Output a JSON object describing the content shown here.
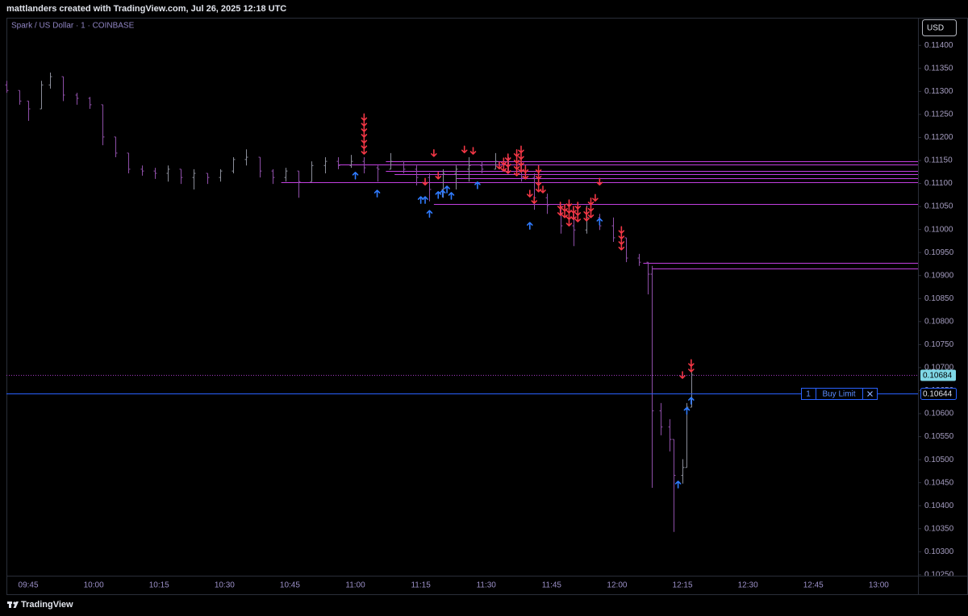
{
  "header": {
    "text": "mattlanders created with TradingView.com, Jul 26, 2025 12:18 UTC"
  },
  "footer": {
    "brand": "TradingView"
  },
  "chart_data": {
    "type": "ohlc",
    "title": "Spark / US Dollar · 1 · COINBASE",
    "currency": "USD",
    "x": [
      "09:40",
      "09:43",
      "09:45",
      "09:48",
      "09:50",
      "09:53",
      "09:56",
      "09:59",
      "10:02",
      "10:05",
      "10:08",
      "10:11",
      "10:14",
      "10:17",
      "10:20",
      "10:23",
      "10:26",
      "10:29",
      "10:32",
      "10:35",
      "10:38",
      "10:41",
      "10:44",
      "10:47",
      "10:50",
      "10:53",
      "10:56",
      "10:59",
      "11:02",
      "11:05",
      "11:08",
      "11:11",
      "11:14",
      "11:17",
      "11:20",
      "11:23",
      "11:26",
      "11:29",
      "11:32",
      "11:35",
      "11:38",
      "11:41",
      "11:44",
      "11:47",
      "11:50",
      "11:53",
      "11:56",
      "11:59",
      "12:02",
      "12:05",
      "12:07",
      "12:08",
      "12:10",
      "12:12",
      "12:13",
      "12:15",
      "12:16",
      "12:17"
    ],
    "open": [
      0.11314,
      0.11302,
      0.11279,
      0.11262,
      0.11314,
      0.11332,
      0.11292,
      0.11285,
      0.11271,
      0.11201,
      0.11166,
      0.11131,
      0.11127,
      0.11122,
      0.11131,
      0.11113,
      0.11122,
      0.11113,
      0.11127,
      0.11152,
      0.11157,
      0.11127,
      0.11113,
      0.11127,
      0.11104,
      0.11139,
      0.11148,
      0.11139,
      0.11148,
      0.11134,
      0.11131,
      0.11148,
      0.11131,
      0.11113,
      0.11087,
      0.11122,
      0.11131,
      0.11139,
      0.11131,
      0.11148,
      0.11139,
      0.11113,
      0.11069,
      0.11052,
      0.11008,
      0.10999,
      0.11026,
      0.11008,
      0.10982,
      0.10938,
      0.10929,
      0.10903,
      0.10606,
      0.10571,
      0.10544,
      0.10466,
      0.10483,
      0.10614
    ],
    "high": [
      0.11323,
      0.11302,
      0.11279,
      0.11323,
      0.11341,
      0.11332,
      0.11297,
      0.11288,
      0.11271,
      0.11201,
      0.11166,
      0.11139,
      0.11134,
      0.11139,
      0.11131,
      0.11131,
      0.11122,
      0.11131,
      0.11157,
      0.11174,
      0.11157,
      0.11131,
      0.11134,
      0.11127,
      0.11148,
      0.11157,
      0.11157,
      0.11162,
      0.11157,
      0.11139,
      0.11166,
      0.11148,
      0.11139,
      0.11122,
      0.11131,
      0.11139,
      0.11157,
      0.11148,
      0.11166,
      0.11157,
      0.11148,
      0.11122,
      0.11078,
      0.11052,
      0.11034,
      0.11052,
      0.11034,
      0.11026,
      0.10982,
      0.10947,
      0.10929,
      0.10921,
      0.10623,
      0.10588,
      0.10544,
      0.10501,
      0.10623,
      0.1069
    ],
    "low": [
      0.11297,
      0.11271,
      0.11236,
      0.11262,
      0.11306,
      0.11279,
      0.11271,
      0.11262,
      0.11183,
      0.11157,
      0.11122,
      0.11117,
      0.1111,
      0.11104,
      0.11099,
      0.11087,
      0.11099,
      0.11104,
      0.11122,
      0.11139,
      0.11113,
      0.11099,
      0.11104,
      0.11069,
      0.11104,
      0.11122,
      0.11131,
      0.11134,
      0.11122,
      0.11104,
      0.11131,
      0.11122,
      0.11096,
      0.11061,
      0.11069,
      0.11087,
      0.11104,
      0.11122,
      0.11131,
      0.11122,
      0.11104,
      0.11043,
      0.11034,
      0.10991,
      0.10964,
      0.10991,
      0.10999,
      0.10973,
      0.10929,
      0.10921,
      0.10859,
      0.10439,
      0.10553,
      0.10518,
      0.10343,
      0.10448,
      0.10483,
      0.10614
    ],
    "close": [
      0.11302,
      0.11279,
      0.11262,
      0.11314,
      0.11332,
      0.11292,
      0.11285,
      0.11271,
      0.11201,
      0.11166,
      0.11131,
      0.11127,
      0.11122,
      0.11131,
      0.11113,
      0.11122,
      0.11113,
      0.11127,
      0.11152,
      0.11157,
      0.11127,
      0.11113,
      0.11127,
      0.11104,
      0.11139,
      0.11148,
      0.11139,
      0.11148,
      0.11134,
      0.11131,
      0.11148,
      0.11131,
      0.11113,
      0.11087,
      0.11122,
      0.11131,
      0.11139,
      0.11131,
      0.11148,
      0.11139,
      0.11113,
      0.11069,
      0.11052,
      0.11008,
      0.10999,
      0.11026,
      0.11008,
      0.10982,
      0.10938,
      0.10929,
      0.10903,
      0.10606,
      0.10571,
      0.10544,
      0.10466,
      0.10483,
      0.10614,
      0.10684
    ],
    "up_color": "#8a8d99",
    "down_color": "#8e4fa8",
    "xlim": [
      "09:40",
      "13:09"
    ],
    "xticks": [
      "09:45",
      "10:00",
      "10:15",
      "10:30",
      "10:45",
      "11:00",
      "11:15",
      "11:30",
      "11:45",
      "12:00",
      "12:15",
      "12:30",
      "12:45",
      "13:00"
    ],
    "ylim": [
      0.10248,
      0.1146
    ],
    "yticks": [
      {
        "value": 0.1025,
        "label": "0.10250"
      },
      {
        "value": 0.103,
        "label": "0.10300"
      },
      {
        "value": 0.1035,
        "label": "0.10350"
      },
      {
        "value": 0.104,
        "label": "0.10400"
      },
      {
        "value": 0.1045,
        "label": "0.10450"
      },
      {
        "value": 0.105,
        "label": "0.10500"
      },
      {
        "value": 0.1055,
        "label": "0.10550"
      },
      {
        "value": 0.106,
        "label": "0.10600"
      },
      {
        "value": 0.1065,
        "label": "0.10650"
      },
      {
        "value": 0.107,
        "label": "0.10700"
      },
      {
        "value": 0.1075,
        "label": "0.10750"
      },
      {
        "value": 0.108,
        "label": "0.10800"
      },
      {
        "value": 0.1085,
        "label": "0.10850"
      },
      {
        "value": 0.109,
        "label": "0.10900"
      },
      {
        "value": 0.1095,
        "label": "0.10950"
      },
      {
        "value": 0.11,
        "label": "0.11000"
      },
      {
        "value": 0.1105,
        "label": "0.11050"
      },
      {
        "value": 0.111,
        "label": "0.11100"
      },
      {
        "value": 0.1115,
        "label": "0.11150"
      },
      {
        "value": 0.112,
        "label": "0.11200"
      },
      {
        "value": 0.1125,
        "label": "0.11250"
      },
      {
        "value": 0.113,
        "label": "0.11300"
      },
      {
        "value": 0.1135,
        "label": "0.11350"
      },
      {
        "value": 0.114,
        "label": "0.11400"
      }
    ],
    "levels": {
      "color": "#c23fe0",
      "x": [
        "11:07",
        "10:56",
        "11:07",
        "11:09",
        "11:23",
        "10:43",
        "11:18",
        "12:06",
        "12:08"
      ],
      "values": [
        0.11148,
        0.11141,
        0.11127,
        0.1112,
        0.11111,
        0.11103,
        0.11055,
        0.10928,
        0.10915
      ]
    },
    "sells": {
      "color": "#f23645",
      "x": [
        "11:02",
        "11:02",
        "11:02",
        "11:02",
        "11:02",
        "11:02",
        "11:02",
        "11:18",
        "11:25",
        "11:27",
        "11:16",
        "11:19",
        "11:33",
        "11:34",
        "11:34",
        "11:35",
        "11:35",
        "11:35",
        "11:37",
        "11:37",
        "11:37",
        "11:37",
        "11:38",
        "11:38",
        "11:38",
        "11:38",
        "11:39",
        "11:39",
        "11:40",
        "11:41",
        "11:42",
        "11:42",
        "11:42",
        "11:42",
        "11:43",
        "11:47",
        "11:47",
        "11:48",
        "11:48",
        "11:49",
        "11:49",
        "11:49",
        "11:49",
        "11:50",
        "11:50",
        "11:51",
        "11:51",
        "11:51",
        "11:53",
        "11:53",
        "11:54",
        "11:54",
        "11:54",
        "11:55",
        "11:56",
        "12:01",
        "12:01",
        "12:01",
        "12:01",
        "12:15",
        "12:17",
        "12:17"
      ],
      "values": [
        0.11244,
        0.11232,
        0.1122,
        0.11208,
        0.11195,
        0.11183,
        0.11171,
        0.11166,
        0.11174,
        0.11171,
        0.11104,
        0.11117,
        0.11139,
        0.11148,
        0.11134,
        0.11157,
        0.11143,
        0.11129,
        0.11166,
        0.11152,
        0.11138,
        0.11124,
        0.11174,
        0.1116,
        0.11146,
        0.11132,
        0.11131,
        0.11117,
        0.11078,
        0.11064,
        0.11131,
        0.11117,
        0.11103,
        0.11089,
        0.11087,
        0.11052,
        0.11038,
        0.11047,
        0.11033,
        0.11057,
        0.11043,
        0.11029,
        0.11015,
        0.11043,
        0.11029,
        0.11052,
        0.11038,
        0.11024,
        0.1104,
        0.11026,
        0.11061,
        0.11047,
        0.11033,
        0.11069,
        0.11104,
        0.10999,
        0.10987,
        0.10975,
        0.10963,
        0.10684,
        0.1071,
        0.10698
      ]
    },
    "buys": {
      "color": "#2f7bff",
      "x": [
        "11:00",
        "11:05",
        "11:15",
        "11:16",
        "11:17",
        "11:19",
        "11:20",
        "11:21",
        "11:22",
        "11:28",
        "11:40",
        "11:56",
        "12:14",
        "12:16",
        "12:17"
      ],
      "values": [
        0.11117,
        0.11078,
        0.11064,
        0.11064,
        0.11034,
        0.11075,
        0.11078,
        0.11087,
        0.11073,
        0.11096,
        0.11008,
        0.11017,
        0.10446,
        0.10606,
        0.10628
      ]
    },
    "last_price": 0.10684,
    "last_color": "#7fd8e6",
    "last_line_color": "#a23bc0",
    "order": {
      "quantity": 1,
      "label": "Buy Limit",
      "price": 0.10644,
      "color": "#2962ff"
    }
  }
}
